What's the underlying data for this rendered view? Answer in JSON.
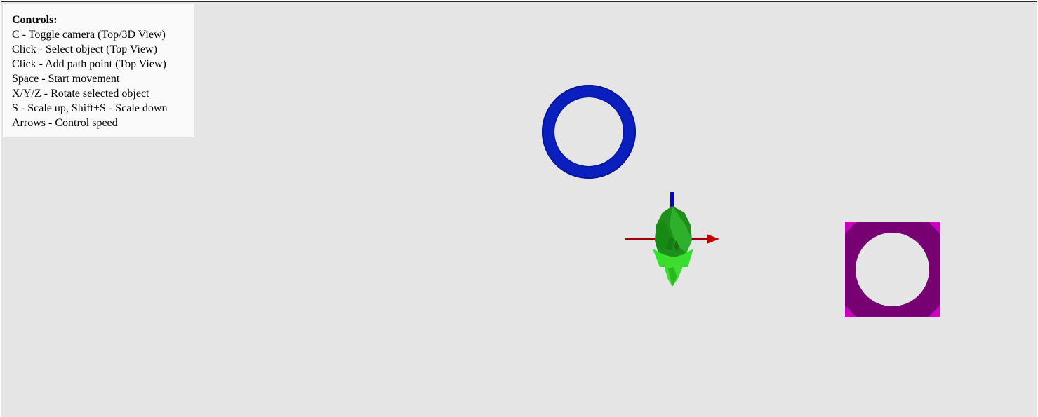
{
  "controls": {
    "title": "Controls:",
    "lines": [
      "C - Toggle camera (Top/3D View)",
      "Click - Select object (Top View)",
      "Click - Add path point (Top View)",
      "Space - Start movement",
      "X/Y/Z - Rotate selected object",
      "S - Scale up, Shift+S - Scale down",
      "Arrows - Control speed"
    ]
  },
  "scene": {
    "background_color": "#e5e5e5",
    "objects": [
      {
        "name": "blue-torus",
        "color": "#0a1ec8"
      },
      {
        "name": "green-ship-model",
        "color": "#22d11e",
        "selected": true
      },
      {
        "name": "magenta-ring-block",
        "color": "#7a0078"
      }
    ],
    "gizmo": {
      "x_axis_color": "#b00000",
      "y_axis_color": "#0000cc"
    }
  }
}
